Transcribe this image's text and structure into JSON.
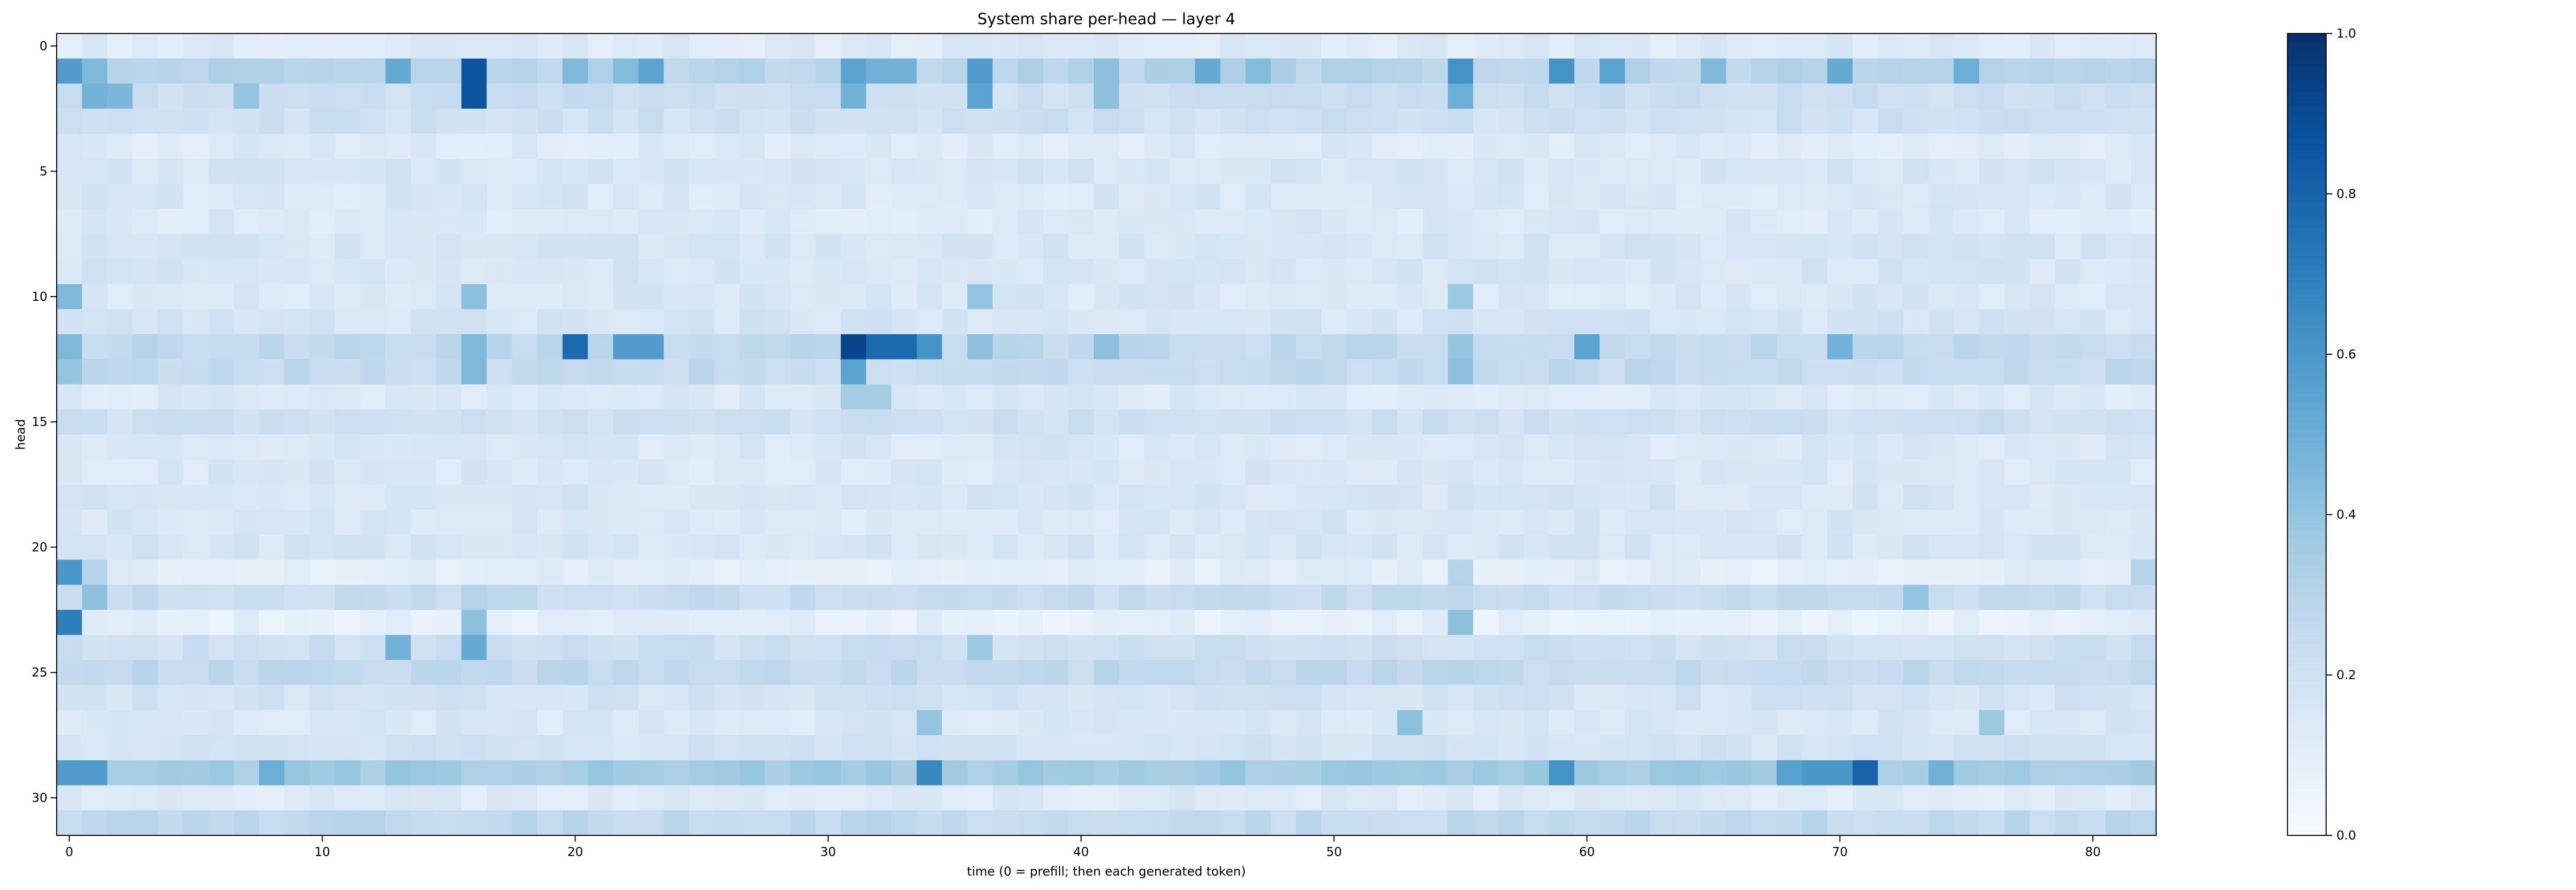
{
  "chart_data": {
    "type": "heatmap",
    "title": "System share per-head — layer 4",
    "xlabel": "time (0 = prefill; then each generated token)",
    "ylabel": "head",
    "n_cols": 83,
    "n_rows": 32,
    "x_ticks": [
      0,
      10,
      20,
      30,
      40,
      50,
      60,
      70,
      80
    ],
    "y_ticks": [
      0,
      5,
      10,
      15,
      20,
      25,
      30
    ],
    "colorbar": {
      "min": 0.0,
      "max": 1.0,
      "ticks": [
        0.0,
        0.2,
        0.4,
        0.6,
        0.8,
        1.0
      ],
      "colormap": "Blues"
    },
    "colormap_stops": [
      "#f7fbff",
      "#deebf7",
      "#c6dbef",
      "#9ecae1",
      "#6baed6",
      "#4292c6",
      "#2171b5",
      "#08519c",
      "#08306b"
    ],
    "row_base": [
      0.13,
      0.3,
      0.22,
      0.2,
      0.13,
      0.16,
      0.15,
      0.14,
      0.16,
      0.16,
      0.15,
      0.17,
      0.26,
      0.25,
      0.14,
      0.21,
      0.15,
      0.15,
      0.16,
      0.15,
      0.16,
      0.1,
      0.24,
      0.09,
      0.21,
      0.26,
      0.18,
      0.15,
      0.18,
      0.36,
      0.13,
      0.26
    ],
    "row_highlights": {
      "1": {
        "0": 0.58,
        "1": 0.45,
        "13": 0.52,
        "16": 0.86,
        "20": 0.45,
        "22": 0.44,
        "23": 0.55,
        "31": 0.55,
        "32": 0.48,
        "33": 0.48,
        "36": 0.58,
        "41": 0.42,
        "45": 0.52,
        "47": 0.44,
        "55": 0.62,
        "59": 0.62,
        "61": 0.55,
        "65": 0.45,
        "70": 0.52,
        "75": 0.5
      },
      "2": {
        "1": 0.48,
        "2": 0.46,
        "7": 0.4,
        "16": 0.86,
        "31": 0.48,
        "36": 0.55,
        "41": 0.42,
        "55": 0.5
      },
      "10": {
        "0": 0.45,
        "16": 0.42,
        "36": 0.4,
        "55": 0.38
      },
      "12": {
        "0": 0.45,
        "16": 0.45,
        "20": 0.78,
        "22": 0.58,
        "23": 0.58,
        "31": 0.92,
        "32": 0.78,
        "33": 0.78,
        "34": 0.62,
        "36": 0.42,
        "41": 0.42,
        "55": 0.4,
        "60": 0.55,
        "70": 0.48
      },
      "13": {
        "0": 0.4,
        "16": 0.45,
        "31": 0.55,
        "55": 0.42
      },
      "14": {
        "31": 0.35,
        "32": 0.35
      },
      "21": {
        "0": 0.6,
        "1": 0.3,
        "55": 0.3,
        "82": 0.3
      },
      "22": {
        "1": 0.42,
        "16": 0.3,
        "73": 0.4
      },
      "23": {
        "0": 0.7,
        "16": 0.42,
        "55": 0.42
      },
      "24": {
        "13": 0.48,
        "16": 0.52,
        "36": 0.38
      },
      "27": {
        "34": 0.4,
        "53": 0.42,
        "76": 0.38
      },
      "29": {
        "0": 0.58,
        "1": 0.58,
        "8": 0.5,
        "34": 0.66,
        "59": 0.62,
        "68": 0.56,
        "69": 0.6,
        "70": 0.6,
        "71": 0.8,
        "74": 0.48
      }
    }
  }
}
